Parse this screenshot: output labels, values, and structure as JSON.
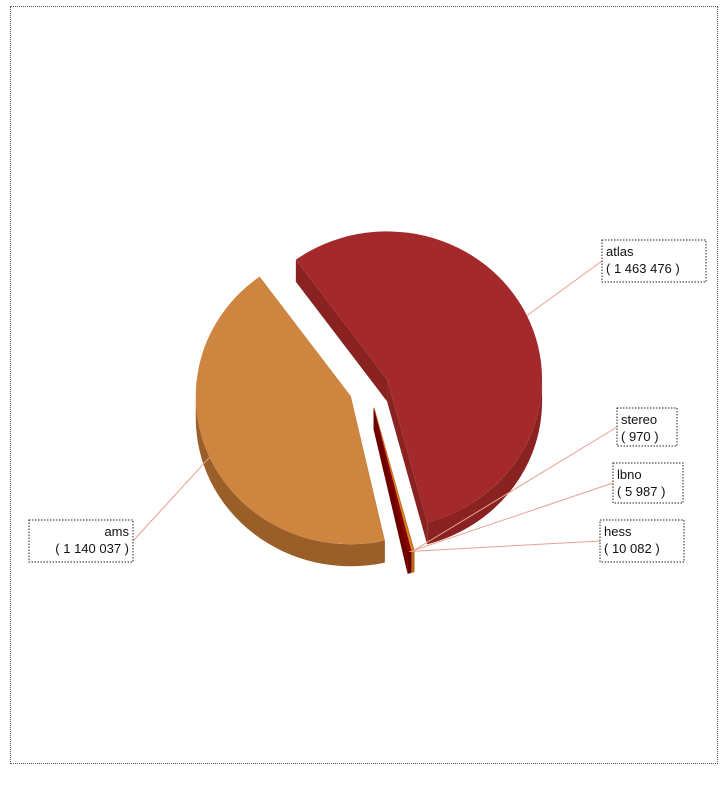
{
  "chart_data": {
    "type": "pie",
    "style": "3d-exploded",
    "slices": [
      {
        "name": "atlas",
        "value": 1463476,
        "display": "( 1 463 476 )",
        "color": "#a3292a",
        "side": "#8a2222",
        "label_side": "right"
      },
      {
        "name": "stereo",
        "value": 970,
        "display": "( 970 )",
        "color": "#c74a18",
        "side": "#a33a10",
        "label_side": "right"
      },
      {
        "name": "lbno",
        "value": 5987,
        "display": "( 5 987 )",
        "color": "#d7821e",
        "side": "#b56a14",
        "label_side": "right"
      },
      {
        "name": "hess",
        "value": 10082,
        "display": "( 10 082 )",
        "color": "#8b0000",
        "side": "#6e0000",
        "label_side": "right"
      },
      {
        "name": "ams",
        "value": 1140037,
        "display": "( 1 140 037 )",
        "color": "#cd853f",
        "side": "#9a5f28",
        "label_side": "left"
      }
    ],
    "legend": "none",
    "grid": false
  }
}
